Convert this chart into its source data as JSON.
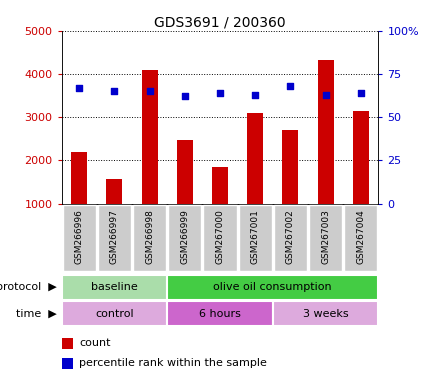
{
  "title": "GDS3691 / 200360",
  "samples": [
    "GSM266996",
    "GSM266997",
    "GSM266998",
    "GSM266999",
    "GSM267000",
    "GSM267001",
    "GSM267002",
    "GSM267003",
    "GSM267004"
  ],
  "counts": [
    2200,
    1570,
    4100,
    2470,
    1850,
    3100,
    2700,
    4320,
    3150
  ],
  "percentile_ranks": [
    67,
    65,
    65,
    62,
    64,
    63,
    68,
    63,
    64
  ],
  "ylim_left": [
    1000,
    5000
  ],
  "ylim_right": [
    0,
    100
  ],
  "yticks_left": [
    1000,
    2000,
    3000,
    4000,
    5000
  ],
  "yticks_right": [
    0,
    25,
    50,
    75,
    100
  ],
  "bar_color": "#cc0000",
  "square_color": "#0000cc",
  "bar_bottom": 1000,
  "protocol_groups": [
    {
      "label": "baseline",
      "start": 0,
      "end": 3,
      "color": "#aaddaa"
    },
    {
      "label": "olive oil consumption",
      "start": 3,
      "end": 9,
      "color": "#44cc44"
    }
  ],
  "time_groups": [
    {
      "label": "control",
      "start": 0,
      "end": 3,
      "color": "#ddaadd"
    },
    {
      "label": "6 hours",
      "start": 3,
      "end": 6,
      "color": "#cc66cc"
    },
    {
      "label": "3 weeks",
      "start": 6,
      "end": 9,
      "color": "#ddaadd"
    }
  ],
  "legend_count_label": "count",
  "legend_pct_label": "percentile rank within the sample",
  "left_tick_color": "#cc0000",
  "right_tick_color": "#0000cc",
  "xticklabel_bg": "#cccccc",
  "title_fontsize": 10,
  "label_fontsize": 8,
  "tick_fontsize": 8,
  "sample_fontsize": 6.5
}
